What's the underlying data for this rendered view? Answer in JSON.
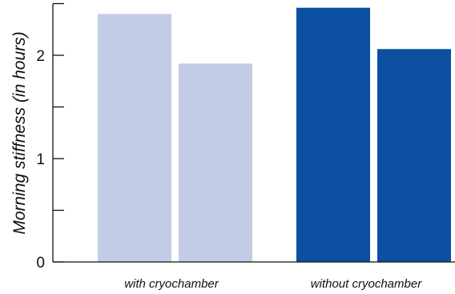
{
  "chart_data": {
    "type": "bar",
    "title": "",
    "xlabel": "",
    "ylabel": "Morning stiffness (in hours)",
    "ylim": [
      0,
      2.5
    ],
    "major_ticks": [
      0,
      1,
      2
    ],
    "minor_ticks": [
      0.5,
      1.5,
      2.5
    ],
    "groups": [
      {
        "label": "with cryochamber",
        "color": "#c2cde5",
        "values": [
          2.4,
          1.92
        ]
      },
      {
        "label": "without cryochamber",
        "color": "#0b50a1",
        "values": [
          2.46,
          2.06
        ]
      }
    ],
    "grid": false,
    "legend": "none"
  }
}
